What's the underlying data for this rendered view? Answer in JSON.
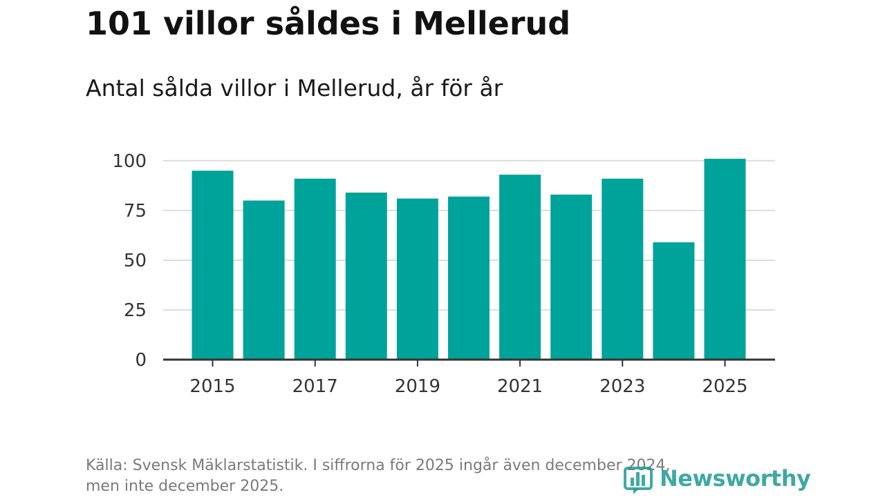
{
  "colors": {
    "bar": "#00a39a",
    "grid": "#dddddd",
    "axis": "#333333",
    "logo": "#1f9a94"
  },
  "chart_data": {
    "type": "bar",
    "title": "101 villor såldes i Mellerud",
    "subtitle": "Antal sålda villor i Mellerud, år för år",
    "xlabel": "",
    "ylabel": "",
    "categories": [
      "2015",
      "2016",
      "2017",
      "2018",
      "2019",
      "2020",
      "2021",
      "2022",
      "2023",
      "2024",
      "2025"
    ],
    "values": [
      95,
      80,
      91,
      84,
      81,
      82,
      93,
      83,
      91,
      59,
      101
    ],
    "x_tick_labels": [
      "2015",
      "2017",
      "2019",
      "2021",
      "2023",
      "2025"
    ],
    "y_ticks": [
      0,
      25,
      50,
      75,
      100
    ],
    "y_tick_labels": [
      "0",
      "25",
      "50",
      "75",
      "100"
    ],
    "ylim": [
      0,
      101
    ],
    "grid": true,
    "legend": "none"
  },
  "footer": {
    "source_line1": "Källa: Svensk Mäklarstatistik. I siffrorna för 2025 ingår även december 2024,",
    "source_line2": "men inte december 2025."
  },
  "logo": {
    "icon": "newsworthy-bar-icon",
    "text": "Newsworthy"
  }
}
